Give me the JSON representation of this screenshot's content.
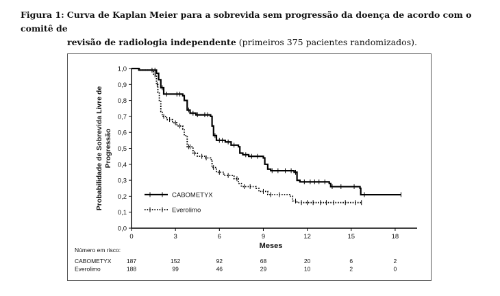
{
  "caption": {
    "label": "Figura 1:",
    "bold_line1": "Curva de Kaplan Meier para a sobrevida sem progressão da doença de acordo com o comitê de",
    "bold_line2": "revisão de radiologia independente",
    "normal_line2": " (primeiros 375 pacientes randomizados)."
  },
  "colors": {
    "line": "#000000",
    "axis": "#000000",
    "frame": "#555555"
  },
  "chart_data": {
    "type": "line",
    "title": "",
    "xlabel": "Meses",
    "ylabel_line1": "Probabilidade de Sobrevida Livre de",
    "ylabel_line2": "Progressão",
    "xlim": [
      0,
      19.5
    ],
    "ylim": [
      0,
      1
    ],
    "x_ticks": [
      "0",
      "3",
      "6",
      "9",
      "12",
      "15",
      "18"
    ],
    "y_ticks": [
      "0,0",
      "0,1",
      "0,2",
      "0,3",
      "0,4",
      "0,5",
      "0,6",
      "0,7",
      "0,8",
      "0,9",
      "1,0"
    ],
    "legend_position": "bottom-left",
    "series": [
      {
        "name": "CABOMETYX",
        "style": "solid",
        "steps": [
          [
            0,
            1.0
          ],
          [
            0.5,
            0.99
          ],
          [
            1.7,
            0.97
          ],
          [
            1.85,
            0.93
          ],
          [
            2.0,
            0.88
          ],
          [
            2.2,
            0.84
          ],
          [
            3.5,
            0.83
          ],
          [
            3.6,
            0.8
          ],
          [
            3.8,
            0.74
          ],
          [
            4.0,
            0.72
          ],
          [
            4.4,
            0.71
          ],
          [
            5.4,
            0.7
          ],
          [
            5.5,
            0.64
          ],
          [
            5.6,
            0.58
          ],
          [
            5.8,
            0.55
          ],
          [
            6.4,
            0.54
          ],
          [
            6.8,
            0.52
          ],
          [
            7.3,
            0.51
          ],
          [
            7.4,
            0.47
          ],
          [
            7.6,
            0.46
          ],
          [
            8.0,
            0.45
          ],
          [
            9.0,
            0.44
          ],
          [
            9.1,
            0.4
          ],
          [
            9.3,
            0.37
          ],
          [
            9.5,
            0.36
          ],
          [
            11.1,
            0.35
          ],
          [
            11.3,
            0.3
          ],
          [
            11.5,
            0.29
          ],
          [
            13.5,
            0.28
          ],
          [
            13.6,
            0.26
          ],
          [
            15.6,
            0.25
          ],
          [
            15.65,
            0.21
          ],
          [
            18.4,
            0.21
          ]
        ],
        "censor_x": [
          1.6,
          2.1,
          2.4,
          3.1,
          3.3,
          3.9,
          4.2,
          4.5,
          5.0,
          5.2,
          5.7,
          6.0,
          6.2,
          6.6,
          7.0,
          7.8,
          8.2,
          8.6,
          9.6,
          10.0,
          10.5,
          10.9,
          11.2,
          11.8,
          12.2,
          12.5,
          12.8,
          13.2,
          13.7,
          14.3,
          15.2,
          15.9,
          18.4
        ]
      },
      {
        "name": "Everolimo",
        "style": "dotted",
        "steps": [
          [
            0,
            1.0
          ],
          [
            0.6,
            0.99
          ],
          [
            1.5,
            0.96
          ],
          [
            1.7,
            0.9
          ],
          [
            1.8,
            0.85
          ],
          [
            1.9,
            0.8
          ],
          [
            2.0,
            0.73
          ],
          [
            2.1,
            0.7
          ],
          [
            2.4,
            0.68
          ],
          [
            2.8,
            0.66
          ],
          [
            3.1,
            0.64
          ],
          [
            3.5,
            0.62
          ],
          [
            3.6,
            0.58
          ],
          [
            3.8,
            0.51
          ],
          [
            4.2,
            0.47
          ],
          [
            4.5,
            0.45
          ],
          [
            5.0,
            0.44
          ],
          [
            5.4,
            0.43
          ],
          [
            5.5,
            0.38
          ],
          [
            5.8,
            0.35
          ],
          [
            6.3,
            0.33
          ],
          [
            7.0,
            0.31
          ],
          [
            7.3,
            0.28
          ],
          [
            7.5,
            0.26
          ],
          [
            8.5,
            0.25
          ],
          [
            8.7,
            0.23
          ],
          [
            9.3,
            0.21
          ],
          [
            10.8,
            0.2
          ],
          [
            11.0,
            0.17
          ],
          [
            11.3,
            0.16
          ],
          [
            15.7,
            0.16
          ]
        ],
        "censor_x": [
          1.4,
          1.6,
          1.75,
          2.2,
          2.6,
          3.0,
          3.3,
          3.9,
          4.0,
          4.3,
          4.8,
          5.1,
          5.6,
          6.0,
          6.6,
          7.2,
          7.7,
          8.1,
          9.0,
          9.5,
          10.1,
          11.2,
          11.6,
          12.0,
          12.4,
          12.9,
          13.3,
          13.8,
          14.6,
          15.3,
          15.7
        ]
      }
    ],
    "risk_table": {
      "title": "Número em risco:",
      "rows": [
        {
          "label": "CABOMETYX",
          "values": [
            "187",
            "152",
            "92",
            "68",
            "20",
            "6",
            "2"
          ]
        },
        {
          "label": "Everolimo",
          "values": [
            "188",
            "99",
            "46",
            "29",
            "10",
            "2",
            "0"
          ]
        }
      ]
    }
  }
}
